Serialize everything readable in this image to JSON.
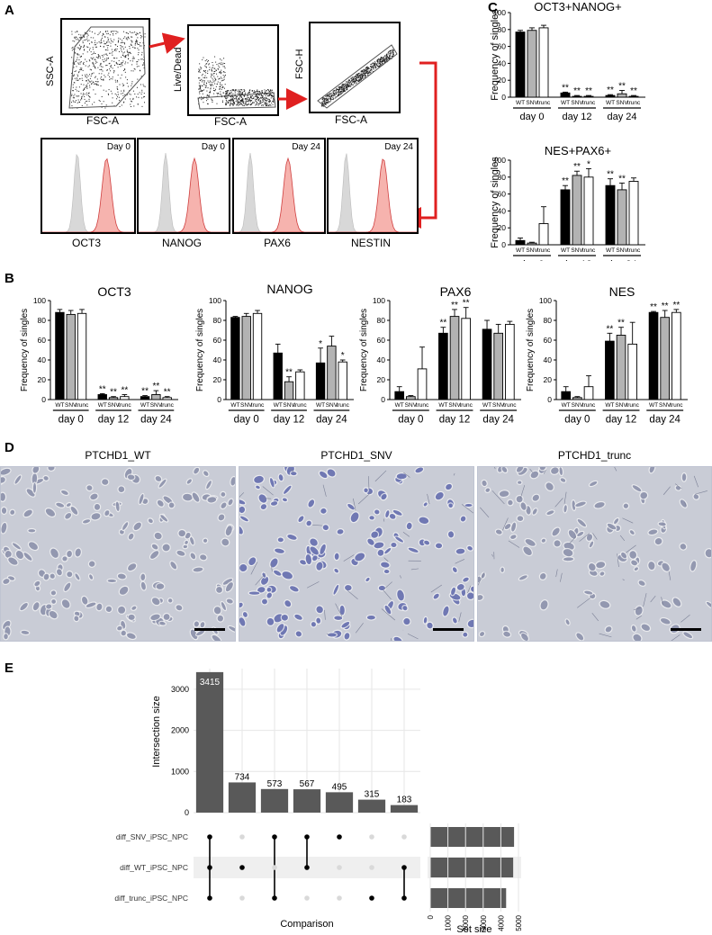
{
  "panel_labels": {
    "a": "A",
    "b": "B",
    "c": "C",
    "d": "D",
    "e": "E"
  },
  "panel_a": {
    "gates": [
      {
        "x_label": "FSC-A",
        "y_label": "SSC-A"
      },
      {
        "x_label": "FSC-A",
        "y_label": "Live/Dead"
      },
      {
        "x_label": "FSC-A",
        "y_label": "FSC-H"
      }
    ],
    "histograms": [
      {
        "marker": "OCT3",
        "day": "Day 0"
      },
      {
        "marker": "NANOG",
        "day": "Day 0"
      },
      {
        "marker": "PAX6",
        "day": "Day 24"
      },
      {
        "marker": "NESTIN",
        "day": "Day 24"
      }
    ],
    "colors": {
      "arrow": "#e02020",
      "positive": "#f4a6a0",
      "negative": "#d8d8d8"
    }
  },
  "bar_group_labels": [
    "WT",
    "SNV",
    "trunc"
  ],
  "day_labels": [
    "day 0",
    "day 12",
    "day 24"
  ],
  "y_axis_label": "Frequency of singles",
  "chart_data": [
    {
      "type": "bar",
      "id": "C1",
      "title": "OCT3+NANOG+",
      "ylim": [
        0,
        100
      ],
      "yticks": [
        0,
        20,
        40,
        60,
        80,
        100
      ],
      "categories": [
        "day 0",
        "day 12",
        "day 24"
      ],
      "series": [
        {
          "name": "WT",
          "values": [
            77,
            5,
            2
          ]
        },
        {
          "name": "SNV",
          "values": [
            79,
            1,
            4
          ]
        },
        {
          "name": "trunc",
          "values": [
            82,
            1,
            1
          ]
        }
      ],
      "errors": [
        [
          2,
          1,
          1
        ],
        [
          3,
          1,
          4
        ],
        [
          3,
          1,
          1
        ]
      ],
      "annotations": [
        "",
        "",
        "",
        "**",
        "**",
        "**",
        "**",
        "**",
        "**"
      ]
    },
    {
      "type": "bar",
      "id": "C2",
      "title": "NES+PAX6+",
      "ylim": [
        0,
        100
      ],
      "yticks": [
        0,
        20,
        40,
        60,
        80,
        100
      ],
      "categories": [
        "day 0",
        "day 12",
        "day 24"
      ],
      "series": [
        {
          "name": "WT",
          "values": [
            5,
            65,
            70
          ]
        },
        {
          "name": "SNV",
          "values": [
            2,
            82,
            65
          ]
        },
        {
          "name": "trunc",
          "values": [
            25,
            80,
            75
          ]
        }
      ],
      "errors": [
        [
          3,
          5,
          8
        ],
        [
          1,
          5,
          8
        ],
        [
          20,
          10,
          4
        ]
      ],
      "annotations": [
        "",
        "",
        "",
        "**",
        "**",
        "*",
        "**",
        "**",
        ""
      ]
    },
    {
      "type": "bar",
      "id": "B1",
      "title": "OCT3",
      "ylim": [
        0,
        100
      ],
      "yticks": [
        0,
        20,
        40,
        60,
        80,
        100
      ],
      "categories": [
        "day 0",
        "day 12",
        "day 24"
      ],
      "series": [
        {
          "name": "WT",
          "values": [
            88,
            5,
            3
          ]
        },
        {
          "name": "SNV",
          "values": [
            86,
            2,
            5
          ]
        },
        {
          "name": "trunc",
          "values": [
            87,
            3,
            2
          ]
        }
      ],
      "errors": [
        [
          3,
          1,
          1
        ],
        [
          4,
          1,
          4
        ],
        [
          4,
          2,
          1
        ]
      ],
      "annotations": [
        "",
        "",
        "",
        "**",
        "**",
        "**",
        "**",
        "**",
        "**"
      ]
    },
    {
      "type": "bar",
      "id": "B2",
      "title": "NANOG",
      "ylim": [
        0,
        100
      ],
      "yticks": [
        0,
        20,
        40,
        60,
        80,
        100
      ],
      "categories": [
        "day 0",
        "day 12",
        "day 24"
      ],
      "series": [
        {
          "name": "WT",
          "values": [
            83,
            47,
            37
          ]
        },
        {
          "name": "SNV",
          "values": [
            84,
            18,
            54
          ]
        },
        {
          "name": "trunc",
          "values": [
            87,
            28,
            38
          ]
        }
      ],
      "errors": [
        [
          1,
          9,
          15
        ],
        [
          3,
          5,
          10
        ],
        [
          3,
          2,
          2
        ]
      ],
      "annotations": [
        "",
        "",
        "",
        "",
        "**",
        "",
        "*",
        "",
        "*"
      ]
    },
    {
      "type": "bar",
      "id": "B3",
      "title": "PAX6",
      "ylim": [
        0,
        100
      ],
      "yticks": [
        0,
        20,
        40,
        60,
        80,
        100
      ],
      "categories": [
        "day 0",
        "day 12",
        "day 24"
      ],
      "series": [
        {
          "name": "WT",
          "values": [
            8,
            67,
            71
          ]
        },
        {
          "name": "SNV",
          "values": [
            3,
            84,
            67
          ]
        },
        {
          "name": "trunc",
          "values": [
            31,
            82,
            76
          ]
        }
      ],
      "errors": [
        [
          5,
          6,
          9
        ],
        [
          1,
          7,
          9
        ],
        [
          22,
          11,
          3
        ]
      ],
      "annotations": [
        "",
        "",
        "",
        "**",
        "**",
        "**",
        "",
        "",
        ""
      ]
    },
    {
      "type": "bar",
      "id": "B4",
      "title": "NES",
      "ylim": [
        0,
        100
      ],
      "yticks": [
        0,
        20,
        40,
        60,
        80,
        100
      ],
      "categories": [
        "day 0",
        "day 12",
        "day 24"
      ],
      "series": [
        {
          "name": "WT",
          "values": [
            8,
            59,
            88
          ]
        },
        {
          "name": "SNV",
          "values": [
            2,
            65,
            83
          ]
        },
        {
          "name": "trunc",
          "values": [
            13,
            56,
            88
          ]
        }
      ],
      "errors": [
        [
          5,
          8,
          1
        ],
        [
          1,
          8,
          7
        ],
        [
          11,
          22,
          3
        ]
      ],
      "annotations": [
        "",
        "",
        "",
        "**",
        "**",
        "",
        "**",
        "**",
        "**"
      ]
    },
    {
      "type": "bar",
      "id": "E",
      "ylabel": "Intersection size",
      "xlabel": "Comparison",
      "ylim": [
        0,
        3500
      ],
      "yticks": [
        0,
        1000,
        2000,
        3000
      ],
      "values": [
        3415,
        734,
        573,
        567,
        495,
        315,
        183
      ],
      "sets": [
        "diff_SNV_iPSC_NPC",
        "diff_WT_iPSC_NPC",
        "diff_trunc_iPSC_NPC"
      ],
      "membership": [
        [
          1,
          1,
          1
        ],
        [
          0,
          1,
          0
        ],
        [
          1,
          0,
          1
        ],
        [
          1,
          1,
          0
        ],
        [
          1,
          0,
          0
        ],
        [
          0,
          0,
          1
        ],
        [
          0,
          1,
          1
        ]
      ],
      "set_sizes": [
        4750,
        4700,
        4300
      ],
      "set_size_label": "Set size",
      "set_size_ticks": [
        0,
        1000,
        2000,
        3000,
        4000,
        5000
      ]
    }
  ],
  "panel_d": {
    "titles": [
      "PTCHD1_WT",
      "PTCHD1_SNV",
      "PTCHD1_trunc"
    ],
    "colors": {
      "background": "#c9ccd6",
      "cell": "#5a64a8",
      "halo": "#f2f2f4"
    }
  }
}
